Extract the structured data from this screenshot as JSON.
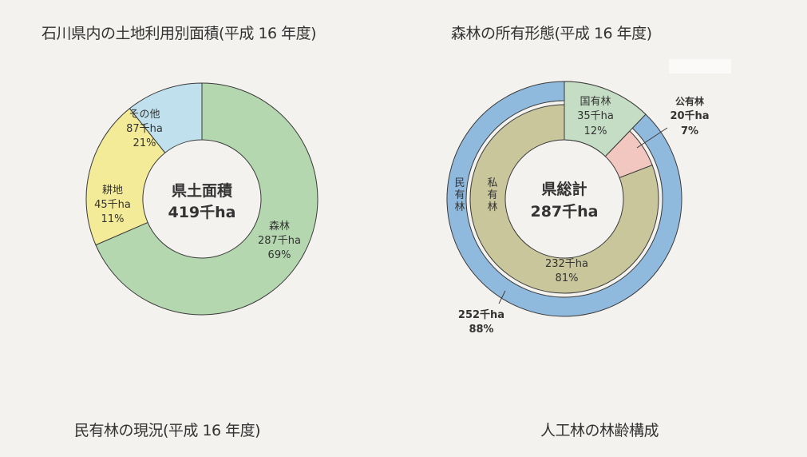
{
  "headings": {
    "top_left": "石川県内の土地利用別面積(平成 16 年度)",
    "top_right": "森林の所有形態(平成 16 年度)",
    "bottom_left": "民有林の現況(平成 16 年度)",
    "bottom_right": "人工林の林齢構成"
  },
  "colors": {
    "background": "#f4f2ee",
    "forest": "#b4d7b0",
    "farmland": "#bfe0ec",
    "other": "#f3eb98",
    "national_forest": "#c4ddc4",
    "public_forest": "#f2c7c0",
    "private_forest_inner": "#c9c69c",
    "private_forest_outer": "#8fbade",
    "stroke": "#3a3a3a"
  },
  "chart_data": [
    {
      "type": "pie",
      "title": "石川県内の土地利用別面積(平成 16 年度)",
      "center_label": [
        "県土面積",
        "419千ha"
      ],
      "unit": "千ha",
      "slices": [
        {
          "label": "森林",
          "value": 287,
          "percent": 69,
          "value_text": "287千ha",
          "percent_text": "69%"
        },
        {
          "label": "その他",
          "value": 87,
          "percent": 21,
          "value_text": "87千ha",
          "percent_text": "21%"
        },
        {
          "label": "耕地",
          "value": 45,
          "percent": 11,
          "value_text": "45千ha",
          "percent_text": "11%"
        }
      ]
    },
    {
      "type": "pie",
      "title": "森林の所有形態(平成 16 年度)",
      "center_label": [
        "県総計",
        "287千ha"
      ],
      "unit": "千ha",
      "inner_ring": [
        {
          "label": "国有林",
          "value": 35,
          "percent": 12,
          "value_text": "35千ha",
          "percent_text": "12%"
        },
        {
          "label": "公有林",
          "value": 20,
          "percent": 7,
          "value_text": "20千ha",
          "percent_text": "7%"
        },
        {
          "label": "私有林",
          "value": 232,
          "percent": 81,
          "value_text": "232千ha",
          "percent_text": "81%"
        }
      ],
      "outer_ring": [
        {
          "label": "国有林",
          "value": 35,
          "percent": 12
        },
        {
          "label": "民有林",
          "value": 252,
          "percent": 88,
          "value_text": "252千ha",
          "percent_text": "88%"
        }
      ]
    }
  ]
}
